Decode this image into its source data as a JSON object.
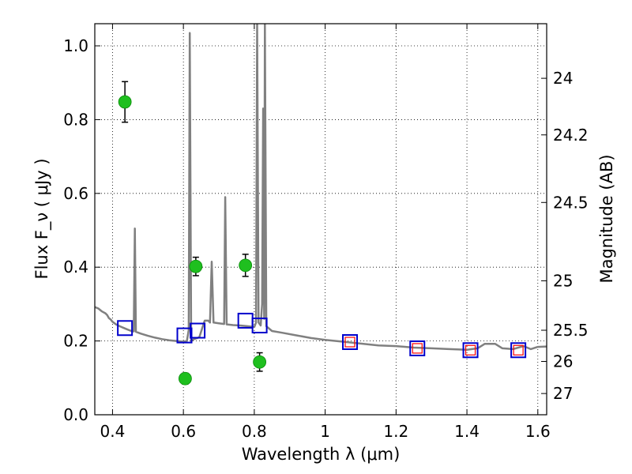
{
  "chart_data": {
    "type": "scatter",
    "title": "",
    "xlabel": "Wavelength  λ (μm)",
    "ylabel": "Flux  F_ν  ( μJy )",
    "y2label": "Magnitude (AB)",
    "xlim": [
      0.35,
      1.625
    ],
    "ylim": [
      0.0,
      1.06
    ],
    "grid": true,
    "xticks": [
      {
        "v": 0.4,
        "label": "0.4"
      },
      {
        "v": 0.6,
        "label": "0.6"
      },
      {
        "v": 0.8,
        "label": "0.8"
      },
      {
        "v": 1.0,
        "label": "1"
      },
      {
        "v": 1.2,
        "label": "1.2"
      },
      {
        "v": 1.4,
        "label": "1.4"
      },
      {
        "v": 1.6,
        "label": "1.6"
      }
    ],
    "yticks": [
      {
        "v": 0.0,
        "label": "0.0"
      },
      {
        "v": 0.2,
        "label": "0.2"
      },
      {
        "v": 0.4,
        "label": "0.4"
      },
      {
        "v": 0.6,
        "label": "0.6"
      },
      {
        "v": 0.8,
        "label": "0.8"
      },
      {
        "v": 1.0,
        "label": "1.0"
      }
    ],
    "y2ticks": [
      {
        "mag": 24,
        "label": "24"
      },
      {
        "mag": 24.2,
        "label": "24.2"
      },
      {
        "mag": 24.5,
        "label": "24.5"
      },
      {
        "mag": 25,
        "label": "25"
      },
      {
        "mag": 25.5,
        "label": "25.5"
      },
      {
        "mag": 26,
        "label": "26"
      },
      {
        "mag": 27,
        "label": "27"
      }
    ],
    "model_sed": {
      "color": "#808080",
      "points": [
        [
          0.35,
          0.292
        ],
        [
          0.36,
          0.288
        ],
        [
          0.37,
          0.28
        ],
        [
          0.38,
          0.275
        ],
        [
          0.385,
          0.27
        ],
        [
          0.39,
          0.262
        ],
        [
          0.395,
          0.258
        ],
        [
          0.4,
          0.252
        ],
        [
          0.41,
          0.245
        ],
        [
          0.42,
          0.24
        ],
        [
          0.43,
          0.236
        ],
        [
          0.44,
          0.232
        ],
        [
          0.45,
          0.228
        ],
        [
          0.46,
          0.226
        ],
        [
          0.463,
          0.505
        ],
        [
          0.466,
          0.225
        ],
        [
          0.48,
          0.22
        ],
        [
          0.5,
          0.214
        ],
        [
          0.52,
          0.209
        ],
        [
          0.54,
          0.205
        ],
        [
          0.56,
          0.202
        ],
        [
          0.58,
          0.2
        ],
        [
          0.6,
          0.198
        ],
        [
          0.61,
          0.2
        ],
        [
          0.615,
          0.23
        ],
        [
          0.618,
          1.035
        ],
        [
          0.622,
          0.2
        ],
        [
          0.63,
          0.205
        ],
        [
          0.645,
          0.21
        ],
        [
          0.655,
          0.24
        ],
        [
          0.66,
          0.255
        ],
        [
          0.67,
          0.255
        ],
        [
          0.675,
          0.25
        ],
        [
          0.68,
          0.415
        ],
        [
          0.685,
          0.25
        ],
        [
          0.7,
          0.248
        ],
        [
          0.715,
          0.246
        ],
        [
          0.718,
          0.59
        ],
        [
          0.722,
          0.245
        ],
        [
          0.74,
          0.243
        ],
        [
          0.76,
          0.242
        ],
        [
          0.78,
          0.24
        ],
        [
          0.8,
          0.238
        ],
        [
          0.805,
          0.25
        ],
        [
          0.808,
          1.06
        ],
        [
          0.812,
          0.25
        ],
        [
          0.818,
          0.242
        ],
        [
          0.822,
          0.3
        ],
        [
          0.825,
          0.83
        ],
        [
          0.828,
          0.26
        ],
        [
          0.83,
          1.06
        ],
        [
          0.834,
          0.24
        ],
        [
          0.85,
          0.227
        ],
        [
          0.88,
          0.222
        ],
        [
          0.92,
          0.215
        ],
        [
          0.96,
          0.208
        ],
        [
          1.0,
          0.203
        ],
        [
          1.05,
          0.198
        ],
        [
          1.1,
          0.193
        ],
        [
          1.15,
          0.188
        ],
        [
          1.2,
          0.186
        ],
        [
          1.25,
          0.182
        ],
        [
          1.3,
          0.18
        ],
        [
          1.35,
          0.178
        ],
        [
          1.4,
          0.176
        ],
        [
          1.43,
          0.18
        ],
        [
          1.45,
          0.192
        ],
        [
          1.48,
          0.192
        ],
        [
          1.5,
          0.18
        ],
        [
          1.53,
          0.178
        ],
        [
          1.56,
          0.186
        ],
        [
          1.58,
          0.178
        ],
        [
          1.6,
          0.184
        ],
        [
          1.625,
          0.185
        ]
      ]
    },
    "series": [
      {
        "marker": "circle",
        "color": "#1fbf1f",
        "points": [
          {
            "x": 0.435,
            "y": 0.848,
            "yerr": 0.055
          },
          {
            "x": 0.605,
            "y": 0.098,
            "yerr": 0.015
          },
          {
            "x": 0.635,
            "y": 0.402,
            "yerr": 0.025
          },
          {
            "x": 0.775,
            "y": 0.405,
            "yerr": 0.03
          },
          {
            "x": 0.815,
            "y": 0.143,
            "yerr": 0.025
          }
        ]
      },
      {
        "marker": "open-square",
        "color": "#0000cc",
        "points": [
          {
            "x": 0.435,
            "y": 0.235
          },
          {
            "x": 0.603,
            "y": 0.215
          },
          {
            "x": 0.64,
            "y": 0.228
          },
          {
            "x": 0.775,
            "y": 0.255
          },
          {
            "x": 0.815,
            "y": 0.242
          },
          {
            "x": 1.07,
            "y": 0.197
          },
          {
            "x": 1.26,
            "y": 0.18
          },
          {
            "x": 1.41,
            "y": 0.175
          },
          {
            "x": 1.545,
            "y": 0.175
          }
        ]
      },
      {
        "marker": "open-square-small",
        "color": "#ff0000",
        "points": [
          {
            "x": 1.07,
            "y": 0.197
          },
          {
            "x": 1.26,
            "y": 0.18
          },
          {
            "x": 1.41,
            "y": 0.175
          },
          {
            "x": 1.545,
            "y": 0.175
          }
        ]
      }
    ]
  }
}
